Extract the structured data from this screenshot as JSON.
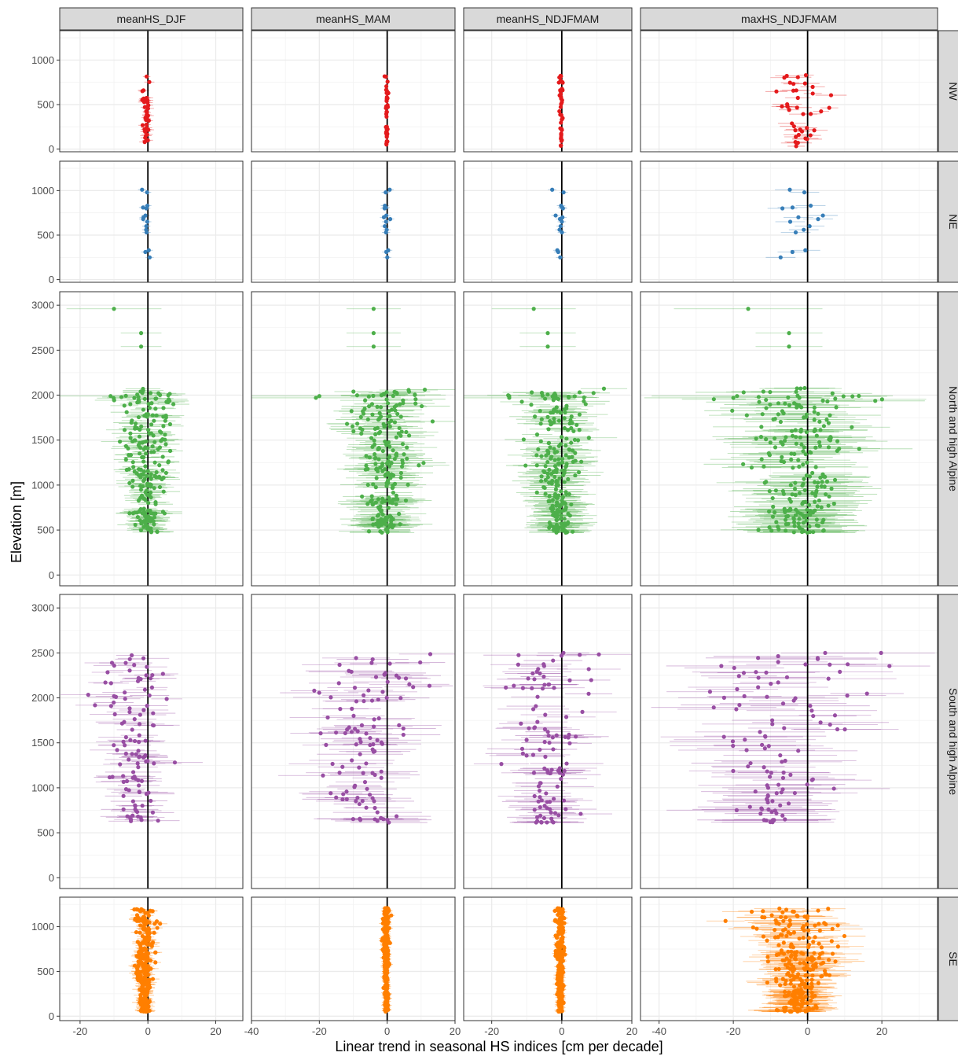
{
  "chart_data": {
    "type": "scatter",
    "description_style": "faceted dot plot with horizontal error bars",
    "xlabel": "Linear trend in seasonal HS indices [cm per decade]",
    "ylabel": "Elevation [m]",
    "columns": [
      "meanHS_DJF",
      "meanHS_MAM",
      "meanHS_NDJFMAM",
      "maxHS_NDJFMAM"
    ],
    "rows": [
      "NW",
      "NE",
      "North and high Alpine",
      "South and high Alpine",
      "SE"
    ],
    "row_colors": {
      "NW": "#e41a1c",
      "NE": "#377eb8",
      "North and high Alpine": "#4daf4a",
      "South and high Alpine": "#984ea3",
      "SE": "#ff7f00"
    },
    "column_xlim": [
      [
        -26,
        28
      ],
      [
        -40,
        20
      ],
      [
        -28,
        20
      ],
      [
        -45,
        35
      ]
    ],
    "column_xticks": [
      [
        -20,
        0,
        20
      ],
      [
        -40,
        -20,
        0,
        20
      ],
      [
        -20,
        0,
        20
      ],
      [
        -40,
        -20,
        0,
        20
      ]
    ],
    "column_xtick_labels": [
      [
        "-20",
        "0",
        "20"
      ],
      [
        "-40",
        "-20",
        "0",
        "20"
      ],
      [
        "-20",
        "0",
        "20"
      ],
      [
        "-40",
        "-20",
        "0",
        "20"
      ]
    ],
    "row_ylim": [
      [
        -30,
        1330
      ],
      [
        -30,
        1330
      ],
      [
        -120,
        3150
      ],
      [
        -120,
        3150
      ],
      [
        -50,
        1330
      ]
    ],
    "row_yticks": [
      [
        0,
        500,
        1000
      ],
      [
        0,
        500,
        1000
      ],
      [
        0,
        500,
        1000,
        1500,
        2000,
        2500,
        3000
      ],
      [
        0,
        500,
        1000,
        1500,
        2000,
        2500,
        3000
      ],
      [
        0,
        500,
        1000
      ]
    ],
    "row_ytick_labels": [
      [
        "0",
        "500",
        "1000"
      ],
      [
        "0",
        "500",
        "1000"
      ],
      [
        "0",
        "500",
        "1000",
        "1500",
        "2000",
        "2500",
        "3000"
      ],
      [
        "0",
        "500",
        "1000",
        "1500",
        "2000",
        "2500",
        "3000"
      ],
      [
        "0",
        "500",
        "1000"
      ]
    ],
    "reference_line_x": 0,
    "grid": true,
    "theme": "black-and-white with grey facet strips",
    "facet_points": {
      "NW": [
        {
          "elev_range": [
            30,
            840
          ],
          "n": 40,
          "spread": [
            0.6,
            0.2,
            0.2,
            3.0
          ],
          "mean": [
            -0.4,
            -0.1,
            -0.2,
            -1.5
          ],
          "err": [
            1.5,
            0.5,
            0.6,
            3.5
          ]
        }
      ],
      "NE": [
        {
          "elev": [
            1010,
            980,
            830,
            810,
            800,
            720,
            700,
            680,
            650,
            600,
            560,
            530,
            330,
            310,
            250
          ],
          "mean": [
            -0.5,
            -0.3,
            -0.3,
            -1.5
          ]
        }
      ],
      "North and high Alpine": [
        {
          "outliers_elev": [
            2960,
            2690,
            2540,
            1990,
            1970
          ],
          "outliers_x": [
            [
              -10,
              -2,
              -2,
              -11,
              -4
            ],
            [
              -4,
              -4,
              -4,
              -20,
              -21
            ],
            [
              -8,
              -4,
              -4,
              -15,
              -15
            ],
            [
              -16,
              -5,
              -5,
              -19,
              -20
            ]
          ]
        },
        {
          "elev_range": [
            470,
            2080
          ],
          "n": 230,
          "spread": [
            3.2,
            4.2,
            3.6,
            6.5
          ],
          "mean": [
            -0.5,
            -0.8,
            -0.8,
            -2.0
          ],
          "err": [
            5,
            8,
            7,
            12
          ]
        }
      ],
      "South and high Alpine": [
        {
          "elev_range": [
            610,
            2520
          ],
          "n": 110,
          "spread": [
            4.2,
            6.5,
            5.0,
            9.0
          ],
          "mean": [
            -4,
            -6,
            -4,
            -10
          ],
          "err": [
            7,
            11,
            9,
            16
          ]
        }
      ],
      "SE": [
        {
          "elev_range": [
            50,
            1210
          ],
          "n": 260,
          "spread": [
            1.2,
            0.4,
            0.5,
            4.5
          ],
          "mean": [
            -1.0,
            -0.3,
            -0.4,
            -3.0
          ],
          "err": [
            2,
            1,
            1,
            7
          ]
        }
      ]
    }
  }
}
